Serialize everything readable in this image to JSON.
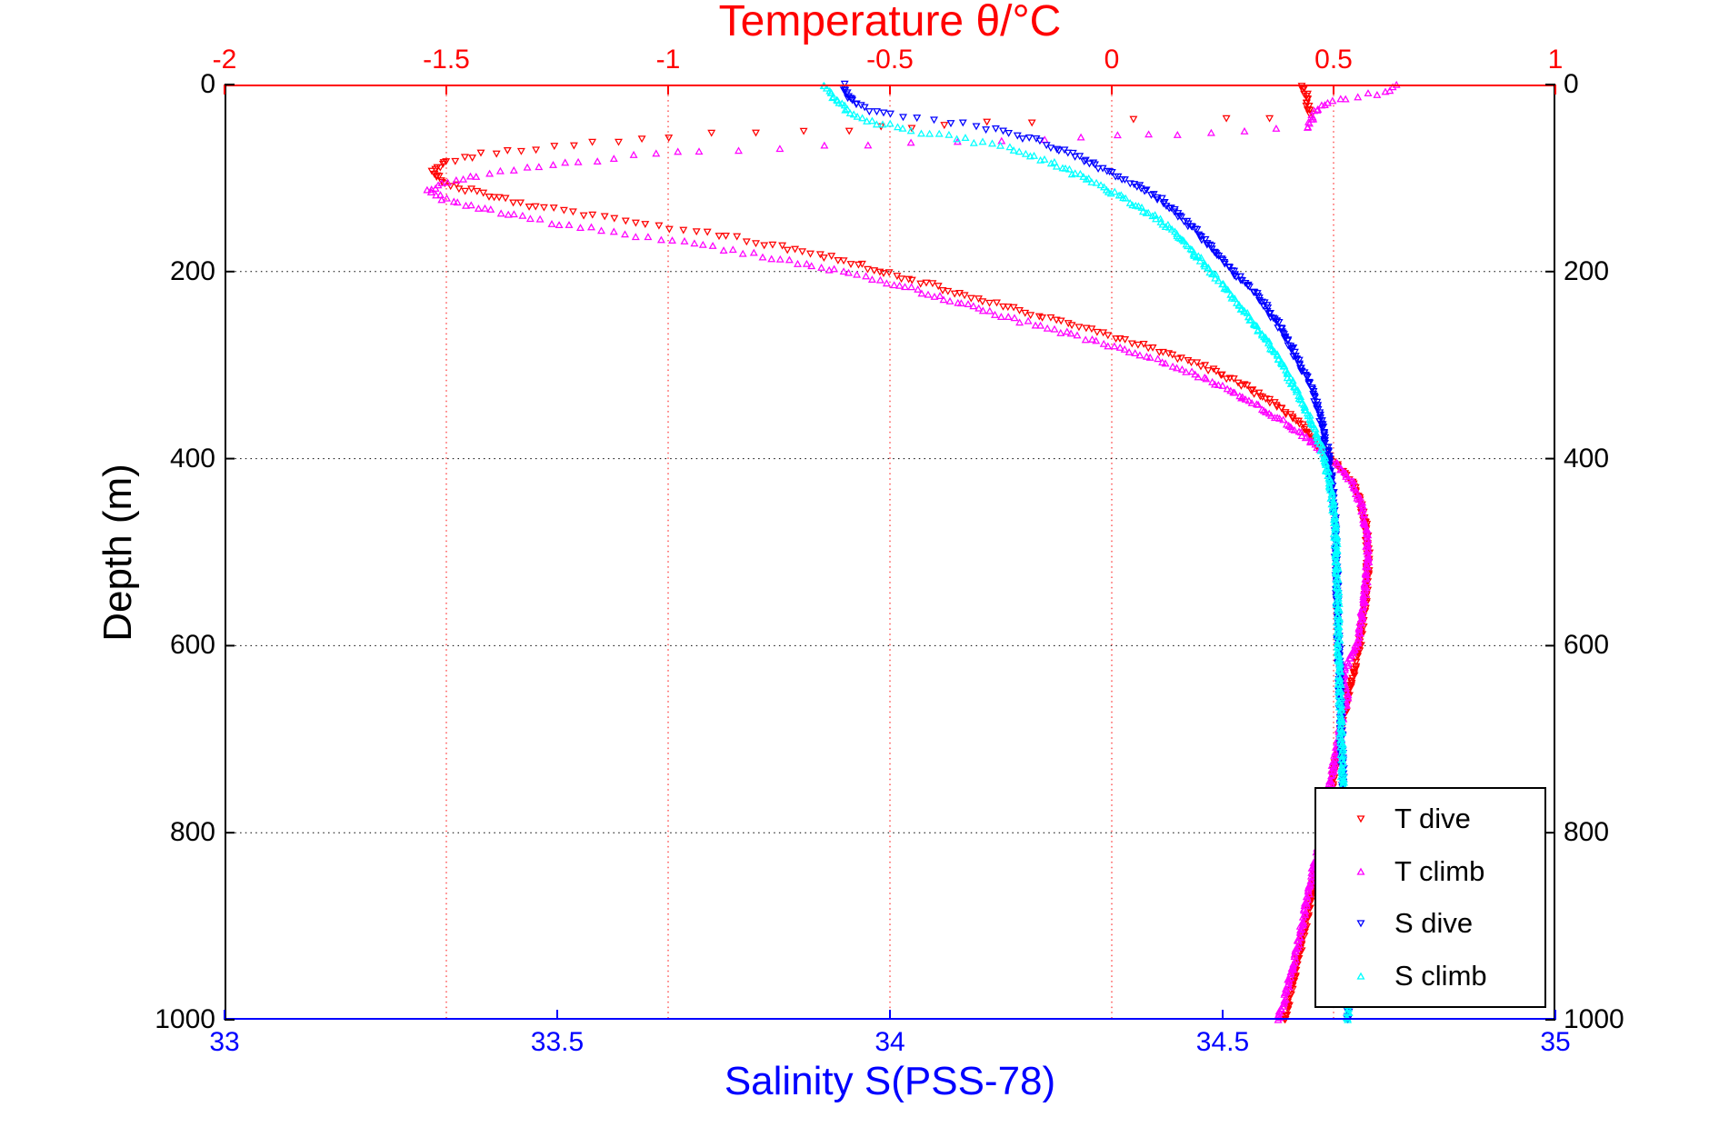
{
  "chart_data": {
    "type": "scatter",
    "title": "Temperature θ/°C",
    "title_color": "#ff0000",
    "ylabel": "Depth (m)",
    "ylabel_color": "#000000",
    "xlabel_bottom": "Salinity S(PSS-78)",
    "xlabel_bottom_color": "#0000ff",
    "background": "#ffffff",
    "grid": {
      "horizontal_color": "#000000",
      "vertical_color": "#ff0000",
      "style": "dotted",
      "horizontal_at_depths": [
        200,
        400,
        600,
        800
      ],
      "vertical_at_temperatures": [
        -1.5,
        -1,
        -0.5,
        0,
        0.5
      ]
    },
    "axes": {
      "top": {
        "title": "Temperature θ/°C",
        "range": [
          -2,
          1
        ],
        "ticks": [
          -2,
          -1.5,
          -1,
          -0.5,
          0,
          0.5,
          1
        ],
        "tick_labels": [
          "-2",
          "-1.5",
          "-1",
          "-0.5",
          "0",
          "0.5",
          "1"
        ],
        "color": "#ff0000"
      },
      "bottom": {
        "title": "Salinity S(PSS-78)",
        "range": [
          33,
          35
        ],
        "ticks": [
          33,
          33.5,
          34,
          34.5,
          35
        ],
        "tick_labels": [
          "33",
          "33.5",
          "34",
          "34.5",
          "35"
        ],
        "color": "#0000ff"
      },
      "left": {
        "title": "Depth (m)",
        "range": [
          0,
          1000
        ],
        "ticks": [
          0,
          200,
          400,
          600,
          800,
          1000
        ],
        "tick_labels": [
          "0",
          "200",
          "400",
          "600",
          "800",
          "1000"
        ],
        "color": "#000000"
      },
      "right": {
        "range": [
          0,
          1000
        ],
        "ticks": [
          0,
          200,
          400,
          600,
          800,
          1000
        ],
        "tick_labels": [
          "0",
          "200",
          "400",
          "600",
          "800",
          "1000"
        ],
        "color": "#000000"
      }
    },
    "legend": {
      "position": "bottom-right",
      "background": "#ffffff",
      "border_color": "#000000",
      "entries": [
        "T dive",
        "T climb",
        "S dive",
        "S climb"
      ]
    },
    "series": [
      {
        "name": "T dive",
        "color": "#ff0000",
        "marker": "triangle-down",
        "axis": "top",
        "units": "°C vs m",
        "points": [
          [
            0.43,
            0
          ],
          [
            0.435,
            6
          ],
          [
            0.44,
            12
          ],
          [
            0.44,
            20
          ],
          [
            0.445,
            27
          ],
          [
            0.45,
            33
          ],
          [
            0.26,
            36
          ],
          [
            0.05,
            38
          ],
          [
            -0.18,
            40
          ],
          [
            -0.38,
            43
          ],
          [
            -0.59,
            48
          ],
          [
            -0.8,
            52
          ],
          [
            -1.0,
            56
          ],
          [
            -1.17,
            62
          ],
          [
            -1.3,
            68
          ],
          [
            -1.42,
            75
          ],
          [
            -1.5,
            83
          ],
          [
            -1.53,
            93
          ],
          [
            -1.51,
            103
          ],
          [
            -1.46,
            112
          ],
          [
            -1.38,
            122
          ],
          [
            -1.28,
            132
          ],
          [
            -1.17,
            141
          ],
          [
            -1.05,
            150
          ],
          [
            -0.91,
            159
          ],
          [
            -0.78,
            170
          ],
          [
            -0.66,
            182
          ],
          [
            -0.56,
            194
          ],
          [
            -0.5,
            203
          ],
          [
            -0.42,
            213
          ],
          [
            -0.33,
            226
          ],
          [
            -0.22,
            240
          ],
          [
            -0.1,
            256
          ],
          [
            0.02,
            272
          ],
          [
            0.13,
            288
          ],
          [
            0.22,
            304
          ],
          [
            0.3,
            322
          ],
          [
            0.37,
            343
          ],
          [
            0.43,
            365
          ],
          [
            0.46,
            382
          ],
          [
            0.475,
            392
          ],
          [
            0.51,
            408
          ],
          [
            0.54,
            425
          ],
          [
            0.56,
            445
          ],
          [
            0.572,
            470
          ],
          [
            0.578,
            500
          ],
          [
            0.576,
            530
          ],
          [
            0.57,
            560
          ],
          [
            0.563,
            590
          ],
          [
            0.553,
            612
          ],
          [
            0.543,
            635
          ],
          [
            0.53,
            660
          ],
          [
            0.518,
            688
          ],
          [
            0.508,
            715
          ],
          [
            0.5,
            740
          ],
          [
            0.492,
            765
          ],
          [
            0.482,
            795
          ],
          [
            0.468,
            825
          ],
          [
            0.455,
            855
          ],
          [
            0.443,
            885
          ],
          [
            0.43,
            915
          ],
          [
            0.416,
            945
          ],
          [
            0.402,
            975
          ],
          [
            0.39,
            1000
          ]
        ]
      },
      {
        "name": "T climb",
        "color": "#ff00ff",
        "marker": "triangle-up",
        "axis": "top",
        "units": "°C vs m",
        "points": [
          [
            0.64,
            2
          ],
          [
            0.62,
            7
          ],
          [
            0.58,
            11
          ],
          [
            0.53,
            15
          ],
          [
            0.5,
            19
          ],
          [
            0.47,
            24
          ],
          [
            0.455,
            30
          ],
          [
            0.45,
            38
          ],
          [
            0.44,
            45
          ],
          [
            0.3,
            49
          ],
          [
            0.15,
            52
          ],
          [
            0.01,
            55
          ],
          [
            -0.15,
            58
          ],
          [
            -0.35,
            61
          ],
          [
            -0.55,
            64
          ],
          [
            -0.75,
            67
          ],
          [
            -0.93,
            71
          ],
          [
            -1.08,
            76
          ],
          [
            -1.2,
            82
          ],
          [
            -1.32,
            89
          ],
          [
            -1.43,
            97
          ],
          [
            -1.51,
            106
          ],
          [
            -1.54,
            114
          ],
          [
            -1.5,
            123
          ],
          [
            -1.43,
            132
          ],
          [
            -1.33,
            142
          ],
          [
            -1.2,
            152
          ],
          [
            -1.07,
            161
          ],
          [
            -0.94,
            170
          ],
          [
            -0.81,
            181
          ],
          [
            -0.69,
            192
          ],
          [
            -0.59,
            202
          ],
          [
            -0.52,
            210
          ],
          [
            -0.44,
            220
          ],
          [
            -0.35,
            233
          ],
          [
            -0.25,
            247
          ],
          [
            -0.13,
            262
          ],
          [
            -0.02,
            277
          ],
          [
            0.09,
            293
          ],
          [
            0.18,
            308
          ],
          [
            0.26,
            325
          ],
          [
            0.33,
            344
          ],
          [
            0.4,
            364
          ],
          [
            0.455,
            383
          ],
          [
            0.48,
            394
          ],
          [
            0.515,
            410
          ],
          [
            0.545,
            428
          ],
          [
            0.562,
            448
          ],
          [
            0.572,
            472
          ],
          [
            0.578,
            498
          ],
          [
            0.574,
            528
          ],
          [
            0.567,
            558
          ],
          [
            0.558,
            588
          ],
          [
            0.545,
            608
          ],
          [
            0.525,
            625
          ],
          [
            0.52,
            640
          ],
          [
            0.532,
            652
          ],
          [
            0.522,
            672
          ],
          [
            0.51,
            700
          ],
          [
            0.5,
            728
          ],
          [
            0.49,
            755
          ],
          [
            0.478,
            785
          ],
          [
            0.465,
            815
          ],
          [
            0.452,
            845
          ],
          [
            0.44,
            872
          ],
          [
            0.428,
            900
          ],
          [
            0.414,
            930
          ],
          [
            0.4,
            958
          ],
          [
            0.388,
            980
          ],
          [
            0.375,
            1000
          ]
        ]
      },
      {
        "name": "S dive",
        "color": "#0000ff",
        "marker": "triangle-down",
        "axis": "bottom",
        "units": "PSS-78 vs m",
        "points": [
          [
            33.93,
            0
          ],
          [
            33.935,
            8
          ],
          [
            33.94,
            15
          ],
          [
            33.95,
            22
          ],
          [
            33.97,
            28
          ],
          [
            34.0,
            33
          ],
          [
            34.04,
            37
          ],
          [
            34.09,
            41
          ],
          [
            34.13,
            45
          ],
          [
            34.16,
            49
          ],
          [
            34.19,
            54
          ],
          [
            34.22,
            60
          ],
          [
            34.25,
            68
          ],
          [
            34.28,
            77
          ],
          [
            34.31,
            87
          ],
          [
            34.34,
            97
          ],
          [
            34.37,
            108
          ],
          [
            34.4,
            120
          ],
          [
            34.42,
            131
          ],
          [
            34.44,
            143
          ],
          [
            34.46,
            157
          ],
          [
            34.48,
            172
          ],
          [
            34.5,
            188
          ],
          [
            34.52,
            203
          ],
          [
            34.545,
            220
          ],
          [
            34.565,
            238
          ],
          [
            34.585,
            258
          ],
          [
            34.6,
            278
          ],
          [
            34.615,
            298
          ],
          [
            34.63,
            320
          ],
          [
            34.641,
            342
          ],
          [
            34.65,
            364
          ],
          [
            34.657,
            388
          ],
          [
            34.662,
            412
          ],
          [
            34.666,
            440
          ],
          [
            34.669,
            475
          ],
          [
            34.671,
            515
          ],
          [
            34.672,
            555
          ],
          [
            34.674,
            600
          ],
          [
            34.676,
            645
          ],
          [
            34.678,
            690
          ],
          [
            34.68,
            735
          ],
          [
            34.682,
            780
          ],
          [
            34.684,
            825
          ],
          [
            34.685,
            870
          ],
          [
            34.686,
            915
          ],
          [
            34.687,
            955
          ],
          [
            34.688,
            1000
          ]
        ]
      },
      {
        "name": "S climb",
        "color": "#00ffff",
        "marker": "triangle-up",
        "axis": "bottom",
        "units": "PSS-78 vs m",
        "points": [
          [
            33.9,
            0
          ],
          [
            33.91,
            8
          ],
          [
            33.92,
            16
          ],
          [
            33.93,
            24
          ],
          [
            33.945,
            31
          ],
          [
            33.965,
            37
          ],
          [
            33.99,
            42
          ],
          [
            34.02,
            47
          ],
          [
            34.06,
            52
          ],
          [
            34.1,
            57
          ],
          [
            34.14,
            62
          ],
          [
            34.18,
            68
          ],
          [
            34.21,
            75
          ],
          [
            34.24,
            83
          ],
          [
            34.27,
            92
          ],
          [
            34.3,
            102
          ],
          [
            34.33,
            113
          ],
          [
            34.36,
            125
          ],
          [
            34.39,
            138
          ],
          [
            34.415,
            150
          ],
          [
            34.435,
            163
          ],
          [
            34.455,
            178
          ],
          [
            34.475,
            194
          ],
          [
            34.495,
            210
          ],
          [
            34.515,
            227
          ],
          [
            34.535,
            245
          ],
          [
            34.557,
            265
          ],
          [
            34.577,
            285
          ],
          [
            34.595,
            306
          ],
          [
            34.612,
            328
          ],
          [
            34.627,
            350
          ],
          [
            34.64,
            372
          ],
          [
            34.651,
            394
          ],
          [
            34.659,
            418
          ],
          [
            34.665,
            445
          ],
          [
            34.669,
            478
          ],
          [
            34.672,
            518
          ],
          [
            34.673,
            558
          ],
          [
            34.674,
            600
          ],
          [
            34.676,
            645
          ],
          [
            34.678,
            690
          ],
          [
            34.68,
            735
          ],
          [
            34.682,
            780
          ],
          [
            34.684,
            825
          ],
          [
            34.685,
            870
          ],
          [
            34.686,
            915
          ],
          [
            34.687,
            955
          ],
          [
            34.688,
            1000
          ]
        ]
      }
    ]
  }
}
